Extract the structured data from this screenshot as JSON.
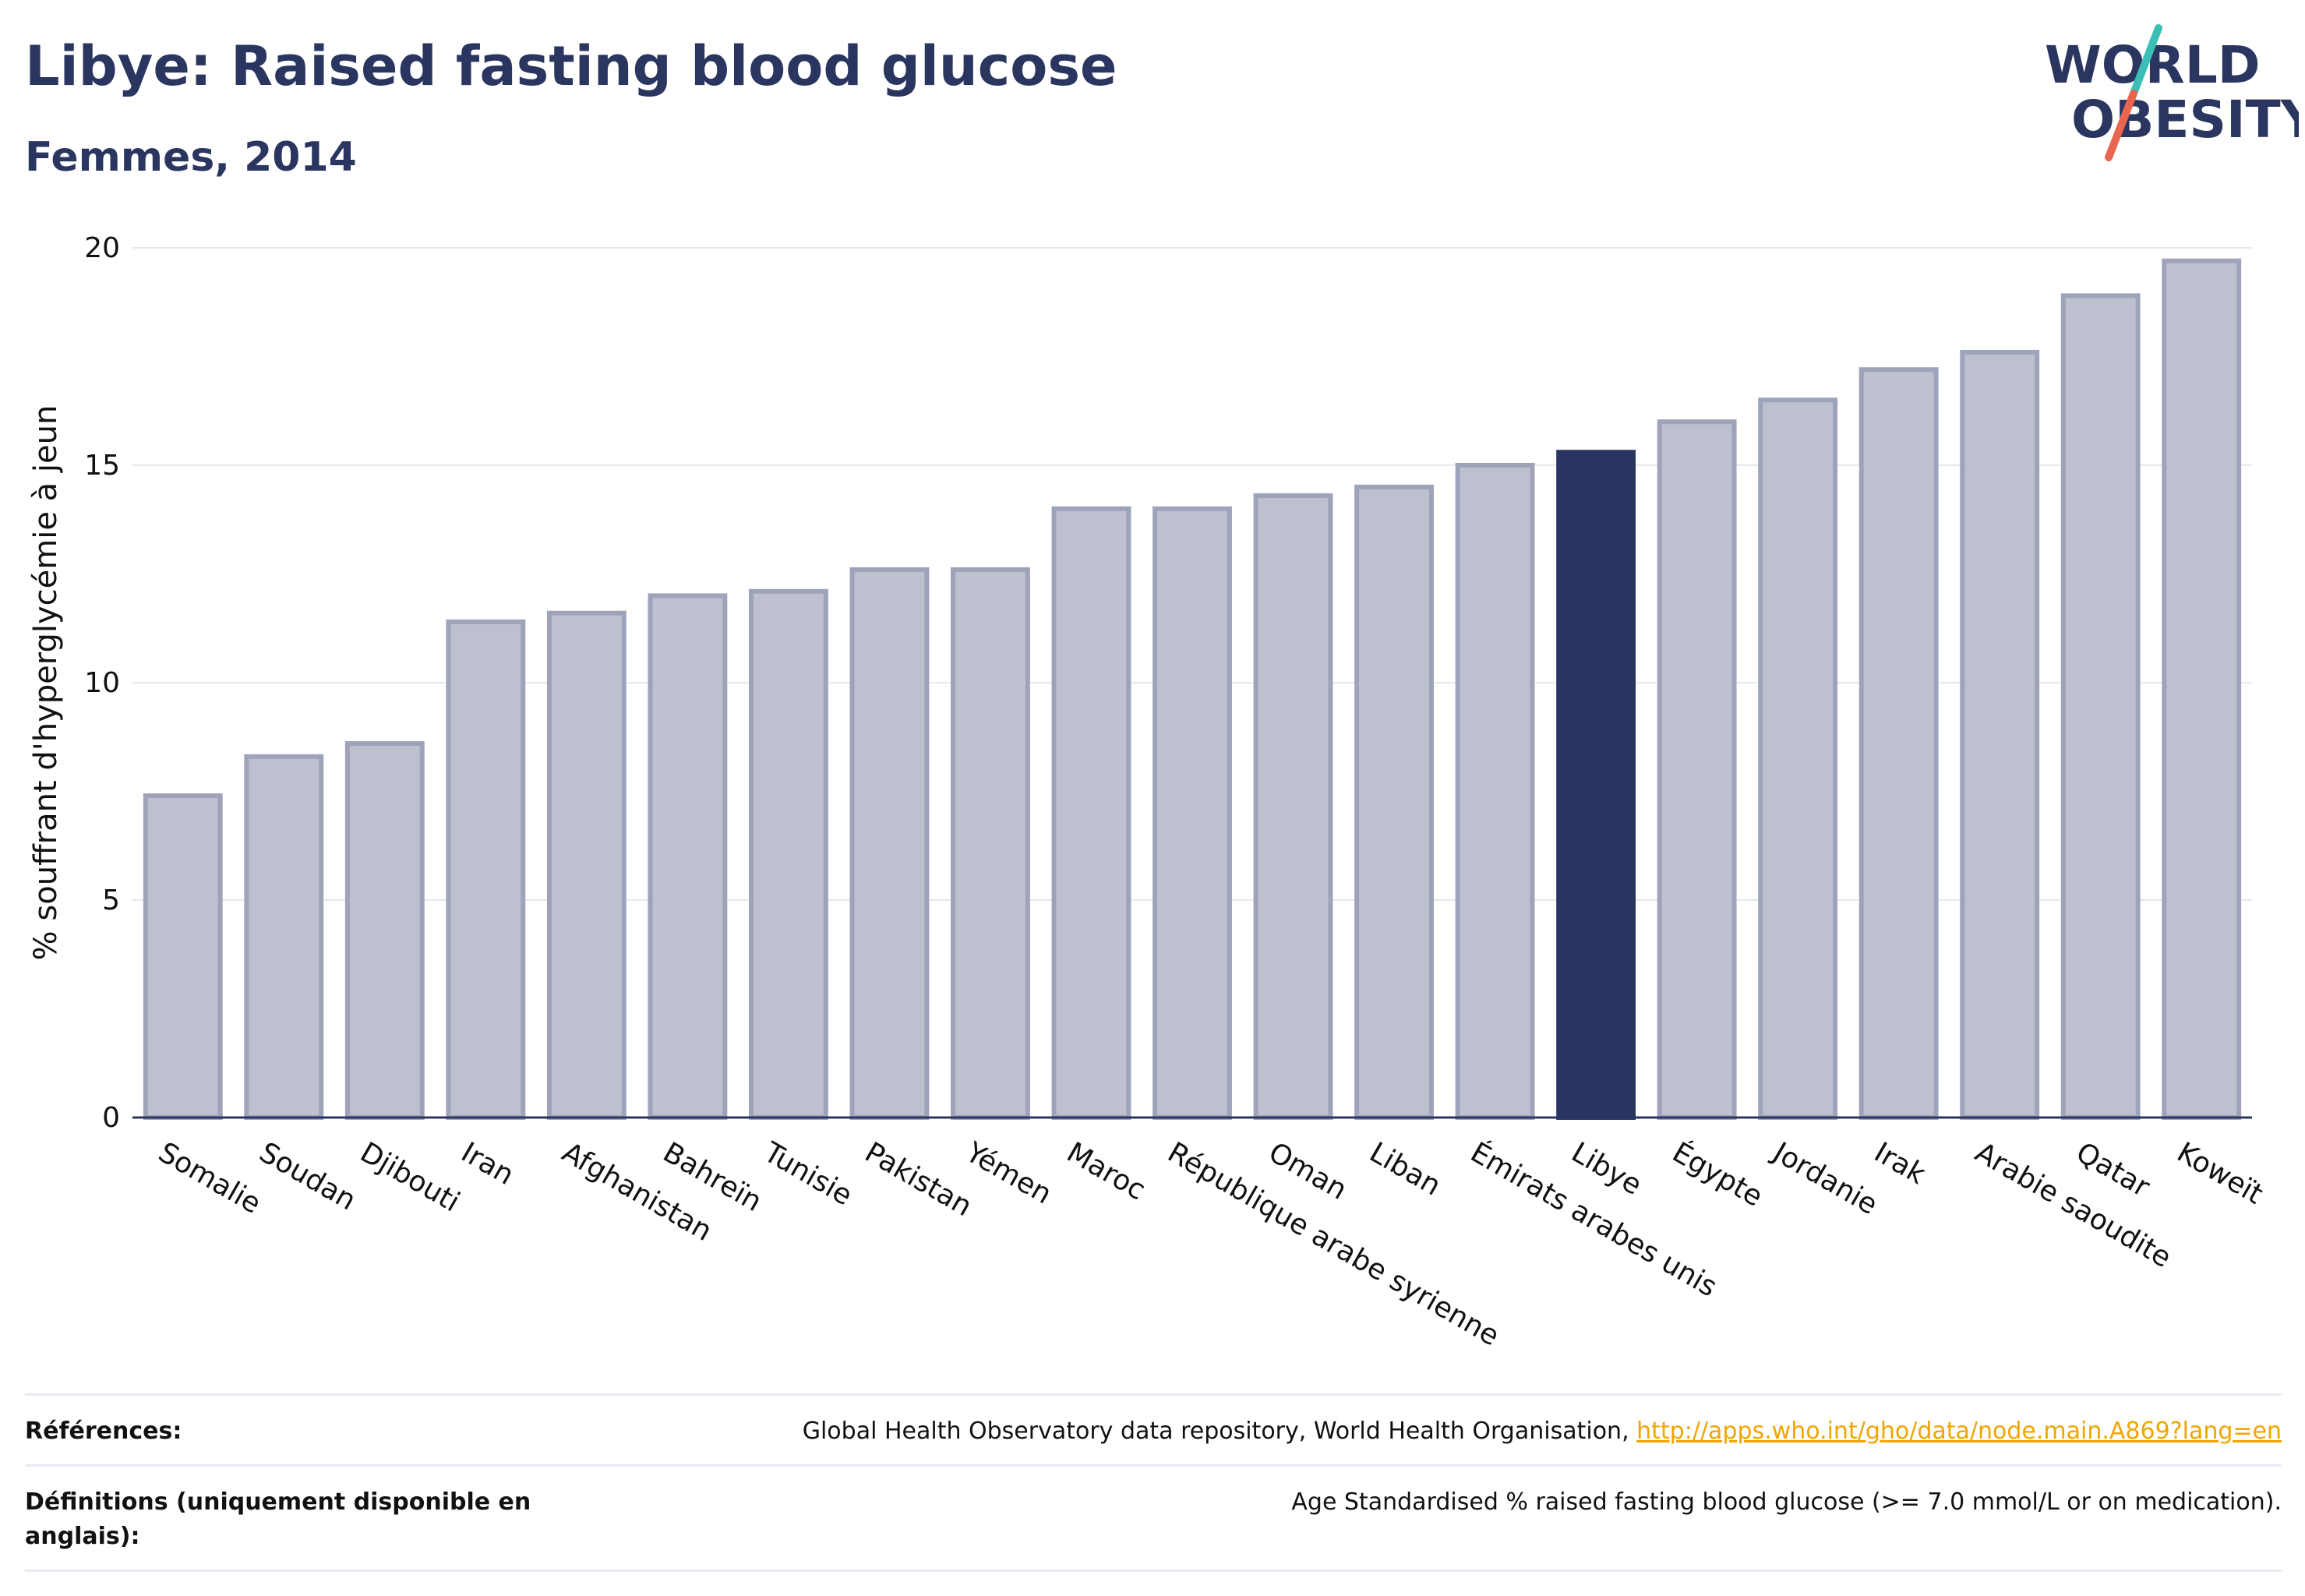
{
  "header": {
    "title": "Libye: Raised fasting blood glucose",
    "subtitle": "Femmes, 2014"
  },
  "logo": {
    "line1": "WORLD",
    "line2": "OBESITY",
    "slash_colors": [
      "#3bbfb5",
      "#e8664f"
    ]
  },
  "colors": {
    "bar": "#bcc0cf",
    "bar_border": "#9ea3ba",
    "highlight": "#283561",
    "axis": "#2a3560",
    "grid": "#e6e8ee",
    "link": "#f0a500"
  },
  "chart_data": {
    "type": "bar",
    "ylabel": "% souffrant d'hyperglycémie à jeun",
    "xlabel": "",
    "ylim": [
      0,
      20
    ],
    "yticks": [
      0,
      5,
      10,
      15,
      20
    ],
    "grid": true,
    "highlight": "Libye",
    "categories": [
      "Somalie",
      "Soudan",
      "Djibouti",
      "Iran",
      "Afghanistan",
      "Bahreïn",
      "Tunisie",
      "Pakistan",
      "Yémen",
      "Maroc",
      "République arabe syrienne",
      "Oman",
      "Liban",
      "Émirats arabes unis",
      "Libye",
      "Égypte",
      "Jordanie",
      "Irak",
      "Arabie saoudite",
      "Qatar",
      "Koweït"
    ],
    "values": [
      7.4,
      8.3,
      8.6,
      11.4,
      11.6,
      12.0,
      12.1,
      12.6,
      12.6,
      14.0,
      14.0,
      14.3,
      14.5,
      15.0,
      15.3,
      16.0,
      16.5,
      17.2,
      17.6,
      18.9,
      19.7
    ]
  },
  "footer": {
    "references_label": "Références:",
    "references_text": "Global Health Observatory data repository, World Health Organisation, ",
    "references_link": "http://apps.who.int/gho/data/node.main.A869?lang=en",
    "definitions_label": "Définitions (uniquement disponible en anglais):",
    "definitions_text": "Age Standardised % raised fasting blood glucose (>= 7.0 mmol/L or on medication)."
  }
}
